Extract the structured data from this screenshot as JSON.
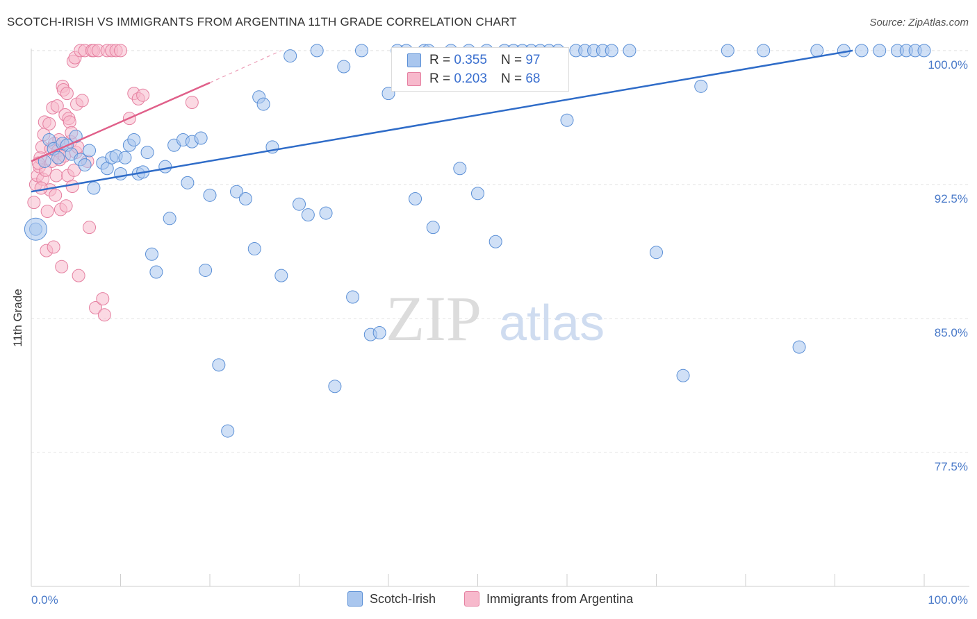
{
  "title": "SCOTCH-IRISH VS IMMIGRANTS FROM ARGENTINA 11TH GRADE CORRELATION CHART",
  "source": "Source: ZipAtlas.com",
  "watermark": {
    "zip": "ZIP",
    "atlas": "atlas"
  },
  "legend": {
    "rows": [
      {
        "r_label": "R = ",
        "r_value": "0.355",
        "n_label": "N = ",
        "n_value": "97"
      },
      {
        "r_label": "R = ",
        "r_value": "0.203",
        "n_label": "N = ",
        "n_value": "68"
      }
    ]
  },
  "bottom_legend": [
    "Scotch-Irish",
    "Immigrants from Argentina"
  ],
  "colors": {
    "blue_fill": "#a9c6ee",
    "blue_stroke": "#5a8fd6",
    "blue_line": "#2f6cc8",
    "pink_fill": "#f7b9cc",
    "pink_stroke": "#e57fa0",
    "pink_line": "#e0608a",
    "grid": "#e4e4e4",
    "tick_text": "#4a7ac9"
  },
  "chart_data": {
    "type": "scatter",
    "title": "SCOTCH-IRISH VS IMMIGRANTS FROM ARGENTINA 11TH GRADE CORRELATION CHART",
    "xlabel": "",
    "ylabel": "11th Grade",
    "xlim": [
      0,
      100
    ],
    "ylim": [
      70.0,
      100.5
    ],
    "y_ticks": [
      77.5,
      85.0,
      92.5,
      100.0
    ],
    "y_tick_labels": [
      "77.5%",
      "85.0%",
      "92.5%",
      "100.0%"
    ],
    "x_tick_labels": [
      "0.0%",
      "100.0%"
    ],
    "series": [
      {
        "name": "Scotch-Irish",
        "R": 0.355,
        "N": 97,
        "trend": {
          "x0": 0,
          "y0": 92.1,
          "x1": 92,
          "y1": 100.0
        },
        "points": [
          [
            0.5,
            90.0
          ],
          [
            1.5,
            93.8
          ],
          [
            2,
            95.0
          ],
          [
            2.5,
            94.5
          ],
          [
            3,
            94.0
          ],
          [
            3.5,
            94.8
          ],
          [
            4,
            94.7
          ],
          [
            4.5,
            94.2
          ],
          [
            5,
            95.2
          ],
          [
            5.5,
            93.9
          ],
          [
            6,
            93.6
          ],
          [
            6.5,
            94.4
          ],
          [
            7,
            92.3
          ],
          [
            8,
            93.7
          ],
          [
            8.5,
            93.4
          ],
          [
            9,
            94.0
          ],
          [
            9.5,
            94.1
          ],
          [
            10,
            93.1
          ],
          [
            10.5,
            94.0
          ],
          [
            11,
            94.7
          ],
          [
            11.5,
            95.0
          ],
          [
            12,
            93.1
          ],
          [
            12.5,
            93.2
          ],
          [
            13,
            94.3
          ],
          [
            13.5,
            88.6
          ],
          [
            14,
            87.6
          ],
          [
            15,
            93.5
          ],
          [
            15.5,
            90.6
          ],
          [
            16,
            94.7
          ],
          [
            17,
            95.0
          ],
          [
            17.5,
            92.6
          ],
          [
            18,
            94.9
          ],
          [
            19,
            95.1
          ],
          [
            19.5,
            87.7
          ],
          [
            20,
            91.9
          ],
          [
            21,
            82.4
          ],
          [
            22,
            78.7
          ],
          [
            23,
            92.1
          ],
          [
            24,
            91.7
          ],
          [
            25,
            88.9
          ],
          [
            25.5,
            97.4
          ],
          [
            26,
            97.0
          ],
          [
            27,
            94.6
          ],
          [
            28,
            87.4
          ],
          [
            29,
            99.7
          ],
          [
            30,
            91.4
          ],
          [
            31,
            90.8
          ],
          [
            32,
            100.0
          ],
          [
            33,
            90.9
          ],
          [
            34,
            81.2
          ],
          [
            35,
            99.1
          ],
          [
            36,
            86.2
          ],
          [
            37,
            100.0
          ],
          [
            38,
            84.1
          ],
          [
            39,
            84.2
          ],
          [
            40,
            97.6
          ],
          [
            41,
            100.0
          ],
          [
            42,
            100.0
          ],
          [
            43,
            91.7
          ],
          [
            44,
            100.0
          ],
          [
            44.5,
            100.0
          ],
          [
            45,
            90.1
          ],
          [
            46,
            99.8
          ],
          [
            47,
            100.0
          ],
          [
            48,
            93.4
          ],
          [
            49,
            100.0
          ],
          [
            50,
            92.0
          ],
          [
            51,
            100.0
          ],
          [
            52,
            89.3
          ],
          [
            53,
            100.0
          ],
          [
            54,
            100.0
          ],
          [
            55,
            100.0
          ],
          [
            56,
            100.0
          ],
          [
            57,
            100.0
          ],
          [
            58,
            100.0
          ],
          [
            59,
            100.0
          ],
          [
            60,
            96.1
          ],
          [
            61,
            100.0
          ],
          [
            62,
            100.0
          ],
          [
            63,
            100.0
          ],
          [
            64,
            100.0
          ],
          [
            65,
            100.0
          ],
          [
            67,
            100.0
          ],
          [
            70,
            88.7
          ],
          [
            73,
            81.8
          ],
          [
            75,
            98.0
          ],
          [
            78,
            100.0
          ],
          [
            82,
            100.0
          ],
          [
            86,
            83.4
          ],
          [
            88,
            100.0
          ],
          [
            91,
            100.0
          ],
          [
            93,
            100.0
          ],
          [
            95,
            100.0
          ],
          [
            97,
            100.0
          ],
          [
            98,
            100.0
          ],
          [
            99,
            100.0
          ],
          [
            100,
            100.0
          ]
        ]
      },
      {
        "name": "Immigrants from Argentina",
        "R": 0.203,
        "N": 68,
        "trend": {
          "x0": 0,
          "y0": 93.8,
          "x1": 20,
          "y1": 98.2
        },
        "points": [
          [
            0.3,
            91.5
          ],
          [
            0.5,
            92.5
          ],
          [
            0.7,
            93.0
          ],
          [
            0.9,
            93.5
          ],
          [
            1.0,
            94.0
          ],
          [
            1.2,
            94.6
          ],
          [
            1.3,
            92.8
          ],
          [
            1.4,
            95.3
          ],
          [
            1.5,
            96.0
          ],
          [
            1.6,
            93.3
          ],
          [
            1.7,
            88.8
          ],
          [
            1.8,
            91.0
          ],
          [
            2.0,
            95.9
          ],
          [
            2.1,
            92.2
          ],
          [
            2.2,
            94.5
          ],
          [
            2.3,
            93.8
          ],
          [
            2.4,
            96.8
          ],
          [
            2.5,
            89.0
          ],
          [
            2.6,
            94.8
          ],
          [
            2.7,
            91.9
          ],
          [
            2.8,
            93.0
          ],
          [
            2.9,
            96.9
          ],
          [
            3.0,
            94.4
          ],
          [
            3.1,
            95.0
          ],
          [
            3.2,
            93.9
          ],
          [
            3.3,
            91.1
          ],
          [
            3.4,
            87.9
          ],
          [
            3.5,
            98.0
          ],
          [
            3.6,
            97.8
          ],
          [
            3.7,
            94.1
          ],
          [
            3.8,
            96.4
          ],
          [
            3.9,
            91.3
          ],
          [
            4.0,
            97.6
          ],
          [
            4.1,
            93.0
          ],
          [
            4.2,
            96.2
          ],
          [
            4.3,
            96.0
          ],
          [
            4.4,
            94.9
          ],
          [
            4.5,
            95.4
          ],
          [
            4.6,
            92.4
          ],
          [
            4.7,
            99.4
          ],
          [
            4.8,
            93.3
          ],
          [
            4.9,
            99.6
          ],
          [
            5.0,
            94.3
          ],
          [
            5.1,
            97.0
          ],
          [
            5.2,
            94.6
          ],
          [
            5.3,
            87.4
          ],
          [
            5.5,
            100.0
          ],
          [
            5.7,
            97.2
          ],
          [
            6.0,
            100.0
          ],
          [
            6.3,
            93.8
          ],
          [
            6.5,
            90.1
          ],
          [
            6.8,
            100.0
          ],
          [
            7.0,
            100.0
          ],
          [
            7.2,
            85.6
          ],
          [
            7.5,
            100.0
          ],
          [
            8.0,
            86.1
          ],
          [
            8.2,
            85.2
          ],
          [
            8.5,
            100.0
          ],
          [
            9.0,
            100.0
          ],
          [
            9.5,
            100.0
          ],
          [
            10.0,
            100.0
          ],
          [
            11.0,
            96.2
          ],
          [
            11.5,
            97.6
          ],
          [
            12.0,
            97.3
          ],
          [
            12.5,
            97.5
          ],
          [
            18.0,
            97.1
          ],
          [
            0.8,
            93.7
          ],
          [
            1.1,
            92.3
          ]
        ]
      }
    ]
  }
}
